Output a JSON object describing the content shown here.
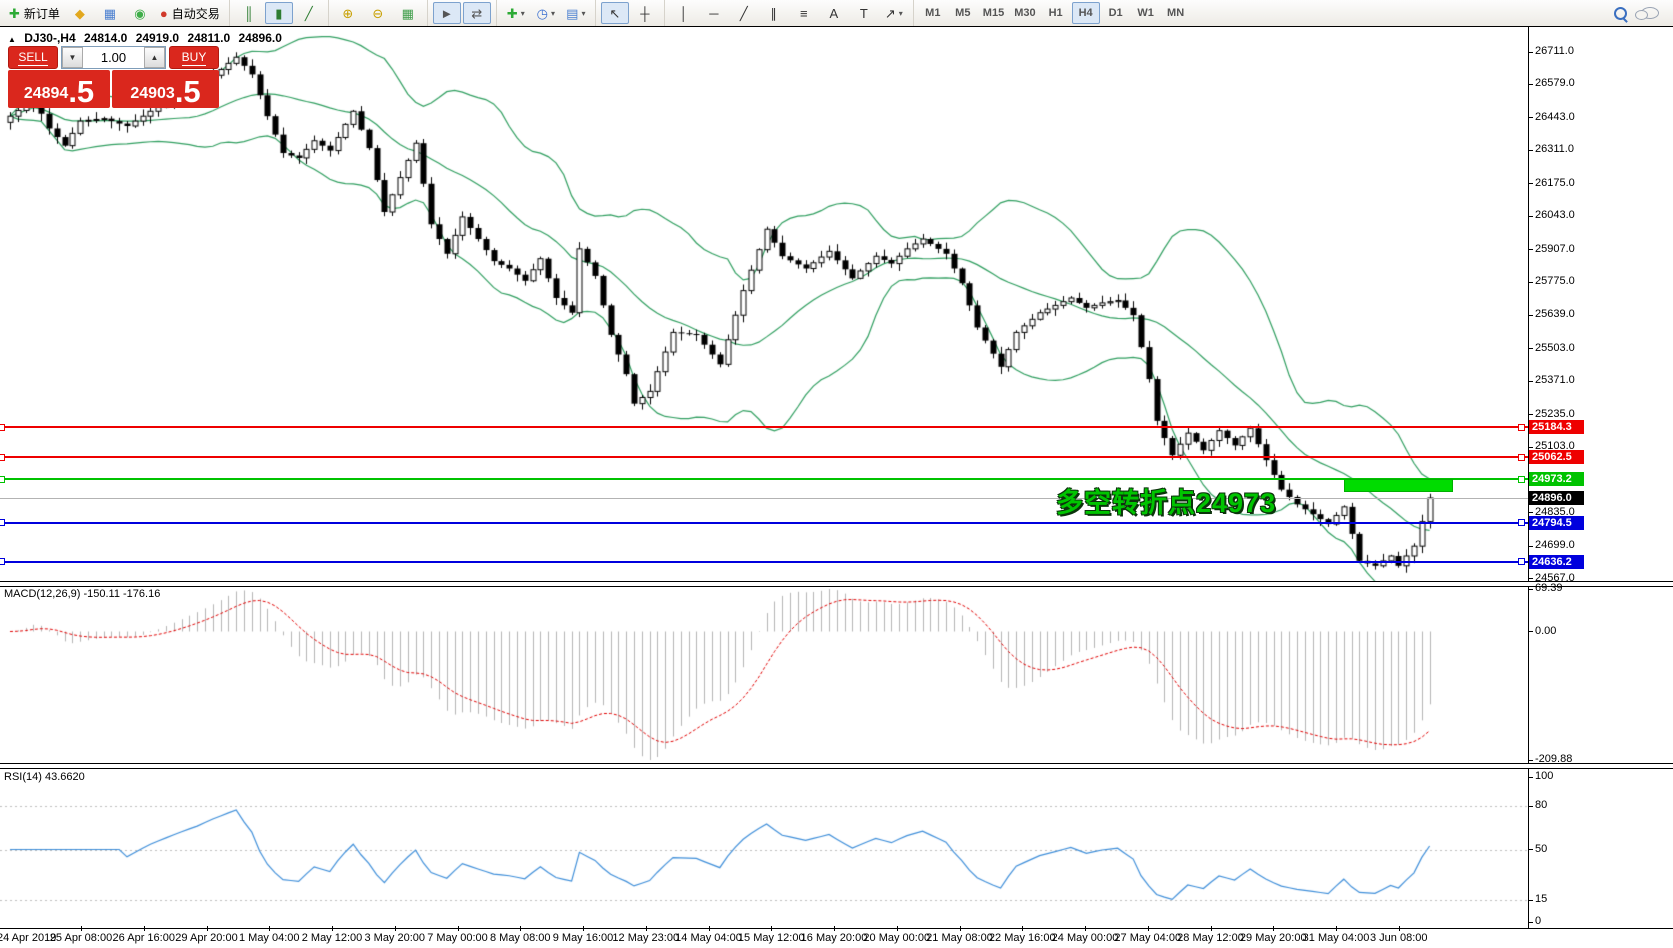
{
  "toolbar": {
    "groups": [
      {
        "name": "trade-group",
        "items": [
          {
            "name": "new-order-button",
            "glyph": "✚",
            "glyph_color": "#2daa35",
            "label": "新订单"
          },
          {
            "name": "charts-profile-button",
            "glyph": "◆",
            "glyph_color": "#e2a81e"
          },
          {
            "name": "chart-window-button",
            "glyph": "▦",
            "glyph_color": "#4a7fd0"
          },
          {
            "name": "signals-button",
            "glyph": "◉",
            "glyph_color": "#3fae49"
          },
          {
            "name": "autotrading-button",
            "glyph": "●",
            "glyph_color": "#d03a2b",
            "label": "自动交易"
          }
        ]
      },
      {
        "name": "chart-type-group",
        "items": [
          {
            "name": "bar-chart-button",
            "glyph": "║",
            "glyph_color": "#2e7d32"
          },
          {
            "name": "candlestick-button",
            "glyph": "▮",
            "glyph_color": "#2e7d32",
            "active": true
          },
          {
            "name": "line-chart-button",
            "glyph": "╱",
            "glyph_color": "#2e7d32"
          }
        ]
      },
      {
        "name": "zoom-group",
        "items": [
          {
            "name": "zoom-in-button",
            "glyph": "⊕",
            "glyph_color": "#c8a000"
          },
          {
            "name": "zoom-out-button",
            "glyph": "⊖",
            "glyph_color": "#c8a000"
          },
          {
            "name": "tile-windows-button",
            "glyph": "▦",
            "glyph_color": "#3f9d4a"
          }
        ]
      },
      {
        "name": "scroll-group",
        "items": [
          {
            "name": "auto-scroll-button",
            "glyph": "►",
            "glyph_color": "#555",
            "active": true
          },
          {
            "name": "chart-shift-button",
            "glyph": "⇄",
            "glyph_color": "#555",
            "active": true
          }
        ]
      },
      {
        "name": "objects-group",
        "items": [
          {
            "name": "indicators-button",
            "glyph": "✚",
            "glyph_color": "#2daa35",
            "dropdown": true
          },
          {
            "name": "periods-button",
            "glyph": "◷",
            "glyph_color": "#3a6fd0",
            "dropdown": true
          },
          {
            "name": "templates-button",
            "glyph": "▤",
            "glyph_color": "#4a7fd0",
            "dropdown": true
          }
        ]
      },
      {
        "name": "cursor-group",
        "items": [
          {
            "name": "cursor-button",
            "glyph": "↖",
            "glyph_color": "#333",
            "active": true
          },
          {
            "name": "crosshair-button",
            "glyph": "┼",
            "glyph_color": "#333"
          }
        ]
      },
      {
        "name": "draw-tools-group",
        "items": [
          {
            "name": "vertical-line-button",
            "glyph": "│",
            "glyph_color": "#333"
          },
          {
            "name": "horizontal-line-button",
            "glyph": "─",
            "glyph_color": "#333"
          },
          {
            "name": "trendline-button",
            "glyph": "╱",
            "glyph_color": "#333"
          },
          {
            "name": "equidistant-channel-button",
            "glyph": "∥",
            "glyph_color": "#333"
          },
          {
            "name": "fibonacci-button",
            "glyph": "≡",
            "glyph_color": "#333"
          },
          {
            "name": "text-button",
            "glyph": "A",
            "glyph_color": "#333"
          },
          {
            "name": "text-label-button",
            "glyph": "T",
            "glyph_color": "#333"
          },
          {
            "name": "arrows-button",
            "glyph": "↗",
            "glyph_color": "#333",
            "dropdown": true
          }
        ]
      },
      {
        "name": "timeframe-group",
        "items": [
          {
            "name": "timeframe-m1",
            "text": "M1"
          },
          {
            "name": "timeframe-m5",
            "text": "M5"
          },
          {
            "name": "timeframe-m15",
            "text": "M15"
          },
          {
            "name": "timeframe-m30",
            "text": "M30"
          },
          {
            "name": "timeframe-h1",
            "text": "H1"
          },
          {
            "name": "timeframe-h4",
            "text": "H4",
            "active": true
          },
          {
            "name": "timeframe-d1",
            "text": "D1"
          },
          {
            "name": "timeframe-w1",
            "text": "W1"
          },
          {
            "name": "timeframe-mn",
            "text": "MN"
          }
        ]
      }
    ]
  },
  "chart": {
    "header": {
      "collapse_icon": "▲",
      "symbol": "DJ30-,H4",
      "open": "24814.0",
      "high": "24919.0",
      "low": "24811.0",
      "close": "24896.0"
    },
    "trade_panel": {
      "sell_label": "SELL",
      "buy_label": "BUY",
      "volume": "1.00",
      "volume_down_glyph": "▼",
      "volume_up_glyph": "▲",
      "sell_price_int": "24894",
      "sell_price_dec": ".5",
      "buy_price_int": "24903",
      "buy_price_dec": ".5",
      "button_color": "#da271d"
    },
    "annotation": {
      "text": "多空转折点24973",
      "color": "#00c400"
    },
    "green_box": {
      "price_top": 24975.0,
      "price_bottom": 24921.0,
      "bar_from": 171,
      "bar_to": 185,
      "color": "#00dc00"
    },
    "price_axis": {
      "ticks": [
        "26711.0",
        "26579.0",
        "26443.0",
        "26311.0",
        "26175.0",
        "26043.0",
        "25907.0",
        "25775.0",
        "25639.0",
        "25503.0",
        "25371.0",
        "25235.0",
        "25103.0",
        "24835.0",
        "24699.0",
        "24567.0"
      ]
    },
    "hlines": [
      {
        "name": "resistance-line-1",
        "price": 25184.3,
        "label": "25184.3",
        "color": "#ee0000",
        "thickness": 2
      },
      {
        "name": "resistance-line-2",
        "price": 25062.5,
        "label": "25062.5",
        "color": "#ee0000",
        "thickness": 2
      },
      {
        "name": "pivot-line",
        "price": 24973.2,
        "label": "24973.2",
        "color": "#00c300",
        "thickness": 2
      },
      {
        "name": "current-price-line",
        "price": 24896.0,
        "label": "24896.0",
        "color": "#b3b3b3",
        "thickness": 1,
        "badge_color": "#000000",
        "is_price": true
      },
      {
        "name": "support-line-1",
        "price": 24794.5,
        "label": "24794.5",
        "color": "#0000dd",
        "thickness": 2
      },
      {
        "name": "support-line-2",
        "price": 24636.2,
        "label": "24636.2",
        "color": "#0000dd",
        "thickness": 2
      }
    ],
    "macd_panel": {
      "label": "MACD(12,26,9) -150.11 -176.16",
      "axis": [
        "69.39",
        "0.00",
        "-209.88"
      ],
      "histogram_color": "#b4b4b4",
      "signal_color": "#e00000"
    },
    "rsi_panel": {
      "label": "RSI(14) 43.6620",
      "axis": [
        "100",
        "80",
        "50",
        "15",
        "0"
      ],
      "levels": [
        80,
        50,
        15
      ],
      "line_color": "#3e8ed9"
    },
    "time_axis": {
      "labels": [
        "24 Apr 2019",
        "25 Apr 08:00",
        "26 Apr 16:00",
        "29 Apr 20:00",
        "1 May 04:00",
        "2 May 12:00",
        "3 May 20:00",
        "7 May 00:00",
        "8 May 08:00",
        "9 May 16:00",
        "12 May 23:00",
        "14 May 04:00",
        "15 May 12:00",
        "16 May 20:00",
        "20 May 00:00",
        "21 May 08:00",
        "22 May 16:00",
        "24 May 00:00",
        "27 May 04:00",
        "28 May 12:00",
        "29 May 20:00",
        "31 May 04:00",
        "3 Jun 08:00"
      ]
    },
    "chart_data": {
      "type": "candlestick",
      "symbol": "DJ30-",
      "timeframe": "H4",
      "bars_total": 183,
      "bollinger_color": "#2f9e5f",
      "anchors": [
        [
          0,
          26450
        ],
        [
          3,
          26520
        ],
        [
          5,
          26400
        ],
        [
          7,
          26330
        ],
        [
          9,
          26430
        ],
        [
          12,
          26440
        ],
        [
          15,
          26410
        ],
        [
          18,
          26470
        ],
        [
          21,
          26520
        ],
        [
          24,
          26570
        ],
        [
          27,
          26640
        ],
        [
          29,
          26690
        ],
        [
          31,
          26620
        ],
        [
          33,
          26450
        ],
        [
          35,
          26300
        ],
        [
          37,
          26280
        ],
        [
          39,
          26350
        ],
        [
          41,
          26310
        ],
        [
          44,
          26470
        ],
        [
          46,
          26320
        ],
        [
          48,
          26060
        ],
        [
          50,
          26200
        ],
        [
          52,
          26340
        ],
        [
          54,
          26010
        ],
        [
          56,
          25890
        ],
        [
          58,
          26040
        ],
        [
          60,
          25950
        ],
        [
          62,
          25860
        ],
        [
          64,
          25830
        ],
        [
          66,
          25780
        ],
        [
          68,
          25870
        ],
        [
          70,
          25710
        ],
        [
          72,
          25650
        ],
        [
          73,
          25910
        ],
        [
          75,
          25800
        ],
        [
          77,
          25560
        ],
        [
          79,
          25400
        ],
        [
          80,
          25280
        ],
        [
          82,
          25330
        ],
        [
          85,
          25570
        ],
        [
          88,
          25560
        ],
        [
          91,
          25440
        ],
        [
          94,
          25740
        ],
        [
          97,
          25990
        ],
        [
          99,
          25880
        ],
        [
          102,
          25830
        ],
        [
          105,
          25900
        ],
        [
          108,
          25790
        ],
        [
          111,
          25880
        ],
        [
          113,
          25850
        ],
        [
          115,
          25910
        ],
        [
          117,
          25950
        ],
        [
          120,
          25890
        ],
        [
          122,
          25770
        ],
        [
          124,
          25590
        ],
        [
          127,
          25430
        ],
        [
          129,
          25570
        ],
        [
          132,
          25650
        ],
        [
          136,
          25710
        ],
        [
          138,
          25670
        ],
        [
          140,
          25690
        ],
        [
          142,
          25700
        ],
        [
          144,
          25640
        ],
        [
          146,
          25380
        ],
        [
          147,
          25210
        ],
        [
          149,
          25070
        ],
        [
          151,
          25160
        ],
        [
          153,
          25090
        ],
        [
          155,
          25170
        ],
        [
          157,
          25110
        ],
        [
          159,
          25180
        ],
        [
          161,
          25050
        ],
        [
          163,
          24930
        ],
        [
          165,
          24870
        ],
        [
          167,
          24830
        ],
        [
          169,
          24790
        ],
        [
          171,
          24860
        ],
        [
          173,
          24640
        ],
        [
          175,
          24620
        ],
        [
          177,
          24660
        ],
        [
          178,
          24620
        ],
        [
          180,
          24700
        ],
        [
          181,
          24800
        ],
        [
          182,
          24896
        ]
      ]
    }
  }
}
